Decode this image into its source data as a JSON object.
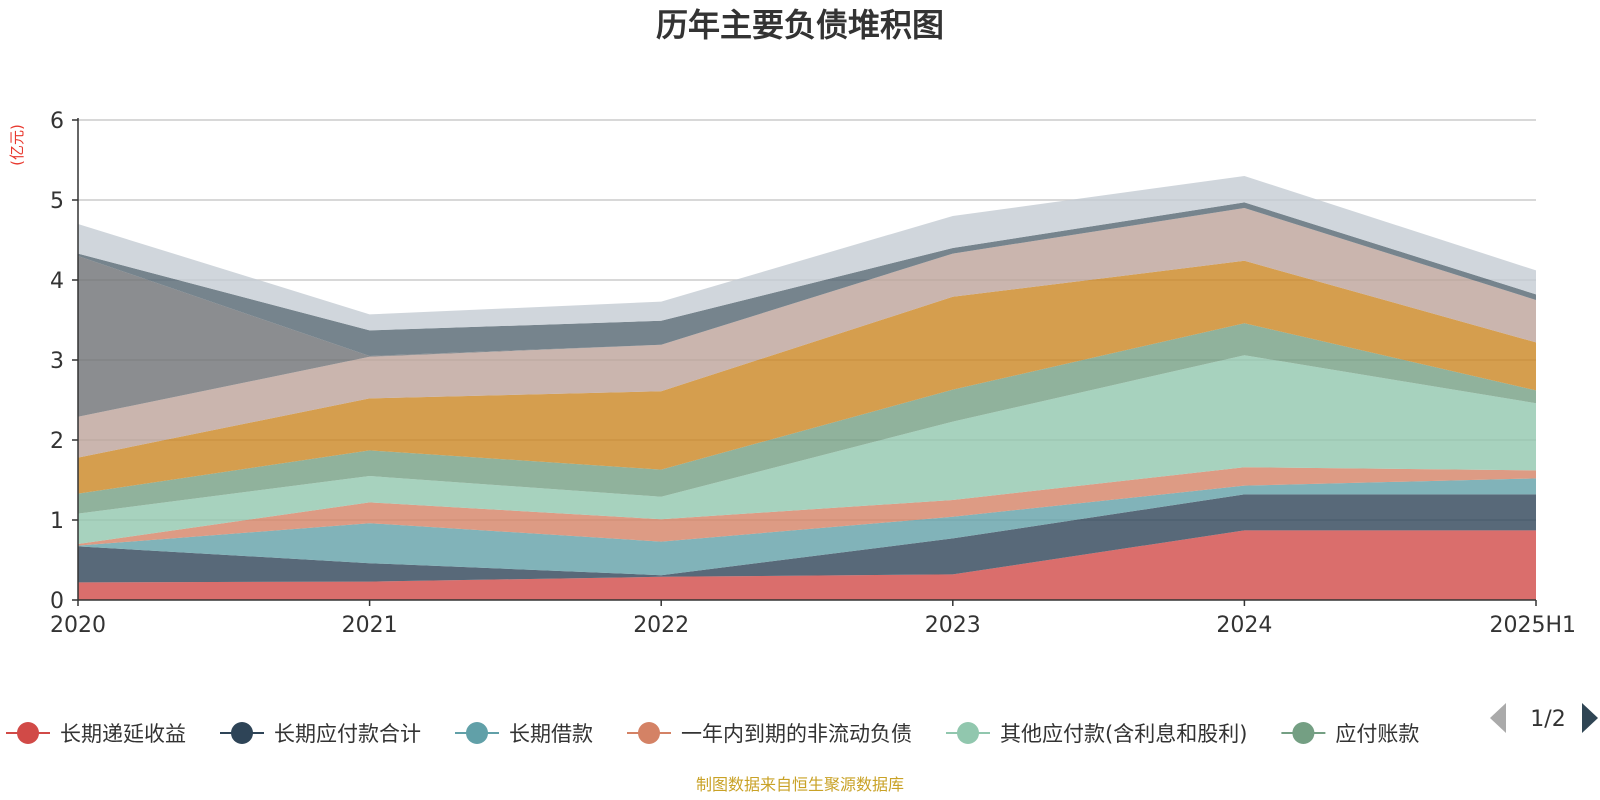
{
  "chart_data": {
    "type": "area",
    "stacked": true,
    "title": "历年主要负债堆积图",
    "unit_label": "(亿元)",
    "categories": [
      "2020",
      "2021",
      "2022",
      "2023",
      "2024",
      "2025H1"
    ],
    "ylim": [
      0,
      6
    ],
    "yticks": [
      0,
      1,
      2,
      3,
      4,
      5,
      6
    ],
    "grid": true,
    "legend_position": "bottom",
    "legend_page": "1/2",
    "source_note": "制图数据来自恒生聚源数据库",
    "series": [
      {
        "name": "长期递延收益",
        "values": [
          0.22,
          0.23,
          0.29,
          0.32,
          0.87,
          0.87
        ],
        "color": "#d14a47",
        "legend_visible": true
      },
      {
        "name": "长期应付款合计",
        "values": [
          0.45,
          0.23,
          0.02,
          0.45,
          0.45,
          0.45
        ],
        "color": "#2e4457",
        "legend_visible": true
      },
      {
        "name": "长期借款",
        "values": [
          0.01,
          0.5,
          0.42,
          0.27,
          0.11,
          0.2
        ],
        "color": "#61a0a8",
        "legend_visible": true
      },
      {
        "name": "一年内到期的非流动负债",
        "values": [
          0.02,
          0.26,
          0.28,
          0.21,
          0.23,
          0.1
        ],
        "color": "#d48265",
        "legend_visible": true
      },
      {
        "name": "其他应付款(含利息和股利)",
        "values": [
          0.38,
          0.33,
          0.28,
          0.98,
          1.4,
          0.84
        ],
        "color": "#91c7ae",
        "legend_visible": true
      },
      {
        "name": "应付账款",
        "values": [
          0.25,
          0.32,
          0.34,
          0.4,
          0.4,
          0.16
        ],
        "color": "#749f83",
        "legend_visible": true
      },
      {
        "name": "",
        "values": [
          0.45,
          0.65,
          0.98,
          1.16,
          0.78,
          0.6
        ],
        "color": "#ca8622",
        "legend_visible": false
      },
      {
        "name": "",
        "values": [
          0.51,
          0.52,
          0.58,
          0.54,
          0.66,
          0.53
        ],
        "color": "#bda29a",
        "legend_visible": false
      },
      {
        "name": "",
        "values": [
          2.01,
          0.01,
          0.0,
          0.0,
          0.0,
          0.0
        ],
        "color": "#6e7074",
        "legend_visible": false
      },
      {
        "name": "",
        "values": [
          0.03,
          0.32,
          0.3,
          0.07,
          0.07,
          0.07
        ],
        "color": "#546570",
        "legend_visible": false
      },
      {
        "name": "",
        "values": [
          0.37,
          0.2,
          0.24,
          0.4,
          0.33,
          0.3
        ],
        "color": "#c4ccd3",
        "legend_visible": false
      }
    ]
  }
}
